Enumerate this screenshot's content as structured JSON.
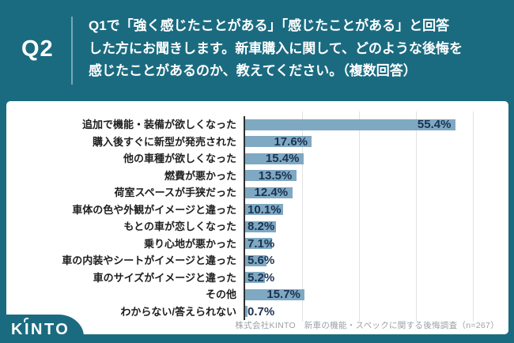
{
  "header": {
    "badge": "Q2",
    "question_lines": [
      "Q1で「強く感じたことがある」「感じたことがある」と回答",
      "した方にお聞きします。新車購入に関して、どのような後悔を",
      "感じたことがあるのか、教えてください。（複数回答）"
    ]
  },
  "chart_data": {
    "type": "bar",
    "orientation": "horizontal",
    "categories": [
      "追加で機能・装備が欲しくなった",
      "購入後すぐに新型が発売された",
      "他の車種が欲しくなった",
      "燃費が悪かった",
      "荷室スペースが手狭だった",
      "車体の色や外観がイメージと違った",
      "もとの車が恋しくなった",
      "乗り心地が悪かった",
      "車の内装やシートがイメージと違った",
      "車のサイズがイメージと違った",
      "その他",
      "わからない/答えられない"
    ],
    "values": [
      55.4,
      17.6,
      15.4,
      13.5,
      12.4,
      10.1,
      8.2,
      7.1,
      5.6,
      5.2,
      15.7,
      0.7
    ],
    "value_suffix": "%",
    "xlim": [
      0,
      65
    ],
    "gridlines_percent": [
      15,
      30,
      45,
      60
    ],
    "grid_on": true,
    "legend": "none",
    "bar_color": "#7FA9C2",
    "value_label_color": "#1C3252"
  },
  "footer": {
    "source": "株式会社KINTO　新車の機能・スペックに関する後悔調査（n=267）",
    "logo": "KINTO"
  },
  "colors": {
    "background": "#1B6B80",
    "panel": "#FFFFFF",
    "header_text": "#FFFFFF"
  }
}
